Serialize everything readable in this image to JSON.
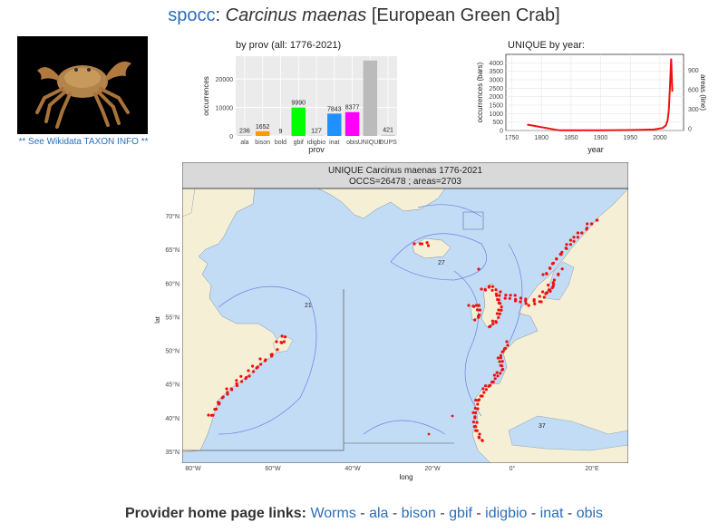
{
  "header": {
    "link_text": "spocc",
    "separator": ":",
    "species": "Carcinus maenas",
    "common_name": "[European Green Crab]"
  },
  "photo": {
    "caption": "** See Wikidata TAXON INFO **"
  },
  "chart_data": [
    {
      "type": "bar",
      "title": "by prov (all: 1776-2021)",
      "xlabel": "prov",
      "ylabel": "occurrences",
      "categories": [
        "ala",
        "bison",
        "bold",
        "gbif",
        "idigbio",
        "inat",
        "obis",
        "UNIQUE",
        "DUPS"
      ],
      "values": [
        236,
        1652,
        9,
        9990,
        127,
        7843,
        8377,
        26478,
        421
      ],
      "colors": [
        "#cccccc",
        "#ff9900",
        "#cccccc",
        "#00ff00",
        "#cccccc",
        "#1e90ff",
        "#ff00ff",
        "#bbbbbb",
        "#cccccc"
      ],
      "ylim": [
        0,
        28000
      ],
      "yticks": [
        0,
        10000,
        20000
      ],
      "ytick_labels": [
        "0",
        "10000",
        "20000"
      ],
      "grid": true
    },
    {
      "type": "line",
      "title": "UNIQUE  by year:",
      "xlabel": "year",
      "ylabel": "occurrences (bars)",
      "y2label": "areas (line)",
      "xlim": [
        1740,
        2040
      ],
      "xticks": [
        1750,
        1800,
        1850,
        1900,
        1950,
        2000
      ],
      "ylim": [
        0,
        4500
      ],
      "yticks": [
        0,
        500,
        1000,
        1500,
        2000,
        2500,
        3000,
        3500,
        4000
      ],
      "y2ticks_labels": [
        "0",
        "300",
        "600",
        "900"
      ],
      "series": [
        {
          "x": [
            1776,
            1830,
            1900,
            1950,
            1990,
            2005,
            2010,
            2013,
            2015,
            2017,
            2019,
            2021
          ],
          "y": [
            350,
            10,
            15,
            25,
            60,
            150,
            300,
            600,
            1200,
            2600,
            4250,
            2300
          ]
        }
      ],
      "grid": true
    }
  ],
  "map": {
    "title_line1": "UNIQUE Carcinus maenas 1776-2021",
    "title_line2": "OCCS=26478 ; areas=2703",
    "xlabel": "long",
    "ylabel": "lat",
    "lon_ticks": [
      "80°W",
      "60°W",
      "40°W",
      "20°W",
      "0°",
      "20°E"
    ],
    "lat_ticks": [
      "70°N",
      "65°N",
      "60°N",
      "55°N",
      "50°N",
      "45°N",
      "40°N",
      "35°N"
    ],
    "area_labels": [
      "21",
      "27",
      "37"
    ]
  },
  "footer": {
    "label": "Provider home page links:",
    "links": [
      "Worms",
      "ala",
      "bison",
      "gbif",
      "idigbio",
      "inat",
      "obis"
    ],
    "separator": "-"
  }
}
